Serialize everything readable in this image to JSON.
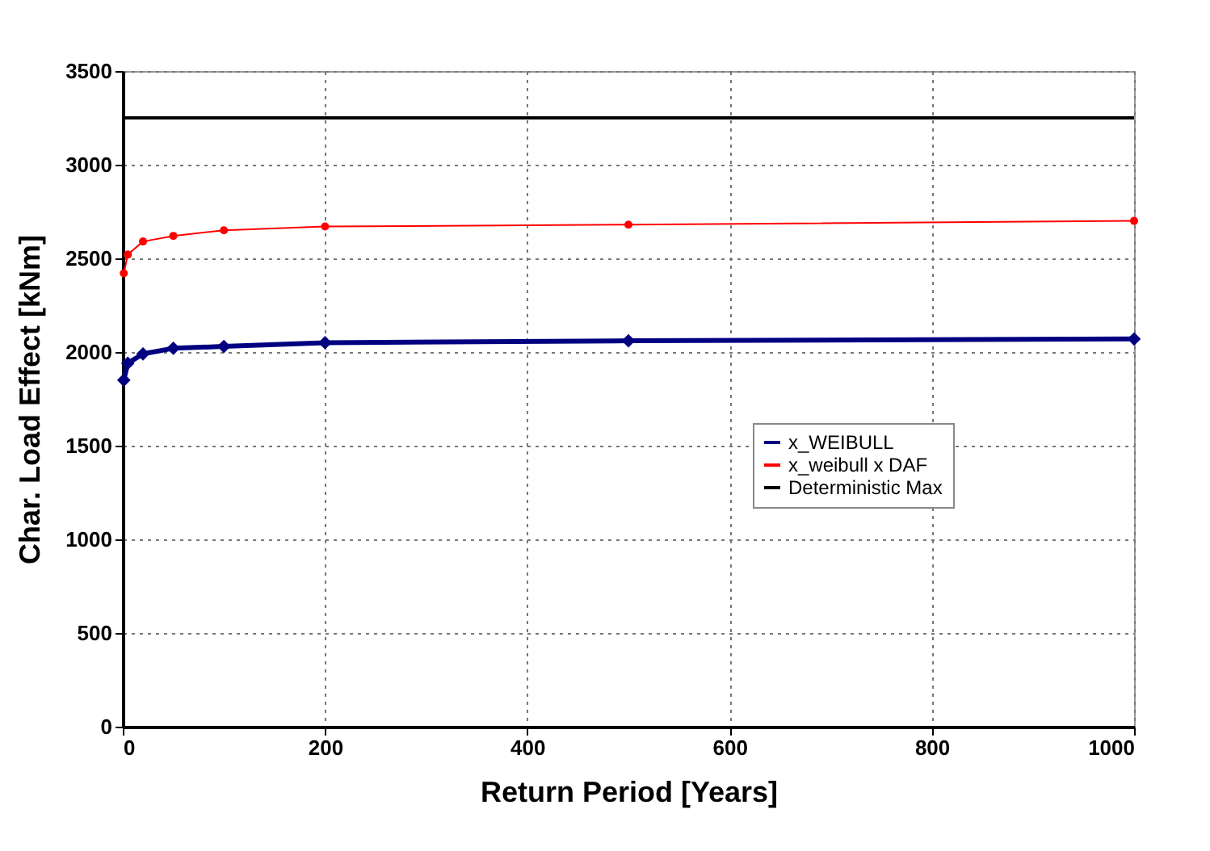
{
  "chart_data": {
    "type": "line",
    "xlabel": "Return Period [Years]",
    "ylabel": "Char. Load Effect [kNm]",
    "x": [
      1,
      5,
      20,
      50,
      100,
      200,
      500,
      1000
    ],
    "series": [
      {
        "name": "x_WEIBULL",
        "color": "#000080",
        "marker": "diamond",
        "values": [
          1850,
          1940,
          1990,
          2020,
          2030,
          2050,
          2060,
          2070
        ]
      },
      {
        "name": "x_weibull x DAF",
        "color": "#ff0000",
        "marker": "circle",
        "values": [
          2420,
          2520,
          2590,
          2620,
          2650,
          2670,
          2680,
          2700
        ]
      },
      {
        "name": "Deterministic Max",
        "color": "#000000",
        "marker": "none",
        "x": [
          0,
          1000
        ],
        "values": [
          3250,
          3250
        ]
      }
    ],
    "xlim": [
      0,
      1000
    ],
    "xticks": [
      0,
      200,
      400,
      600,
      800,
      1000
    ],
    "ylim": [
      0,
      3500
    ],
    "yticks": [
      0,
      500,
      1000,
      1500,
      2000,
      2500,
      3000,
      3500
    ],
    "grid": true,
    "legend": "right"
  }
}
